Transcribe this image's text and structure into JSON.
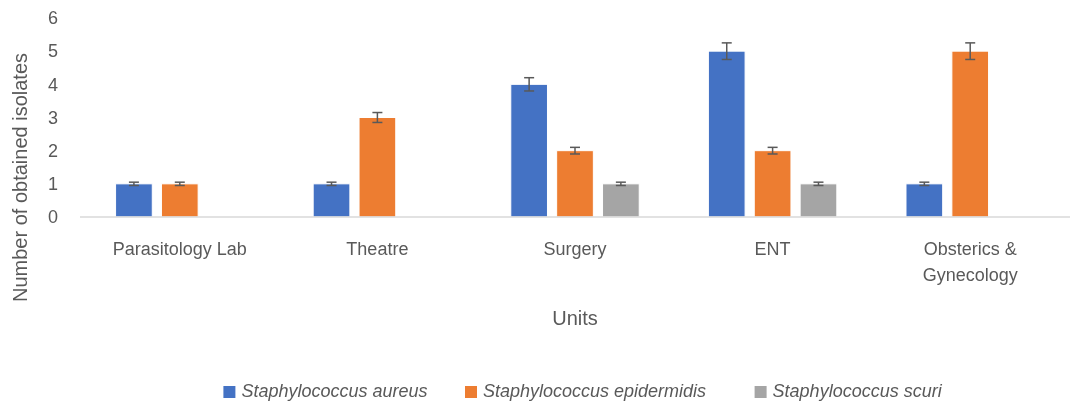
{
  "chart_data": {
    "type": "bar",
    "xlabel": "Units",
    "ylabel": "Number of obtained isolates",
    "categories": [
      "Parasitology Lab",
      "Theatre",
      "Surgery",
      "ENT",
      "Obsterics & Gynecology"
    ],
    "series": [
      {
        "name": "Staphylococcus aureus",
        "color": "#4472c4",
        "values": [
          1,
          1,
          4,
          5,
          1
        ],
        "errors": [
          0.05,
          0.05,
          0.2,
          0.25,
          0.05
        ]
      },
      {
        "name": "Staphylococcus epidermidis",
        "color": "#ed7d31",
        "values": [
          1,
          3,
          2,
          2,
          5
        ],
        "errors": [
          0.05,
          0.15,
          0.1,
          0.1,
          0.25
        ]
      },
      {
        "name": "Staphylococcus scuri",
        "color": "#a5a5a5",
        "values": [
          0,
          0,
          1,
          1,
          0
        ],
        "errors": [
          null,
          null,
          0.05,
          0.05,
          null
        ]
      }
    ],
    "ylim": [
      0,
      6
    ],
    "yticks": [
      0,
      1,
      2,
      3,
      4,
      5,
      6
    ],
    "grid": false,
    "legend": "bottom"
  }
}
